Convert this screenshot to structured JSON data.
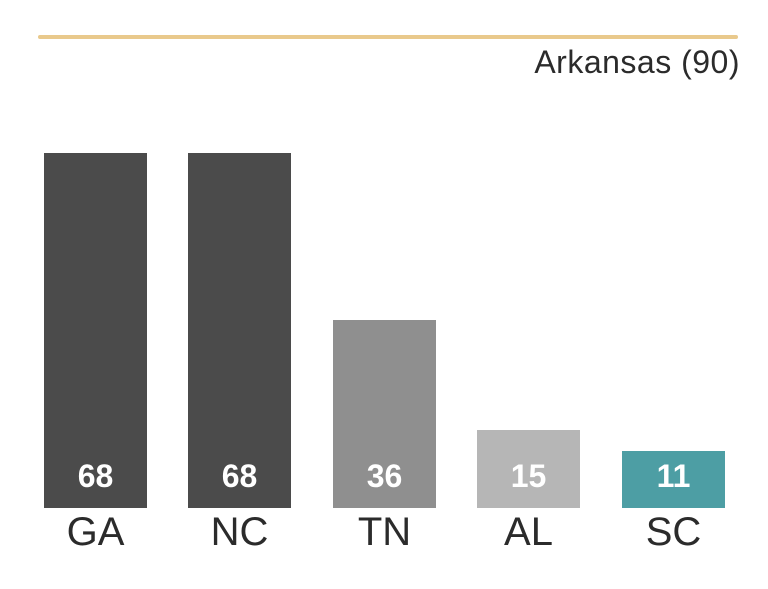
{
  "header": {
    "title": "Arkansas (90)",
    "rule_color": "#e9c98c"
  },
  "chart_data": {
    "type": "bar",
    "title": "Arkansas (90)",
    "categories": [
      "GA",
      "NC",
      "TN",
      "AL",
      "SC"
    ],
    "values": [
      68,
      68,
      36,
      15,
      11
    ],
    "bar_colors": [
      "#4b4b4b",
      "#4b4b4b",
      "#8f8f8f",
      "#b6b6b6",
      "#4d9ea4"
    ],
    "highlight_category": "SC",
    "highlight_color": "#4d9ea4",
    "reference_label": "Arkansas (90)",
    "reference_value": 90,
    "xlabel": "",
    "ylabel": "",
    "ylim": [
      0,
      68
    ],
    "grid": false,
    "legend": "none",
    "value_label_position": "inside-bottom",
    "value_label_color": "#ffffff",
    "category_label_color": "#2b2b2b"
  }
}
